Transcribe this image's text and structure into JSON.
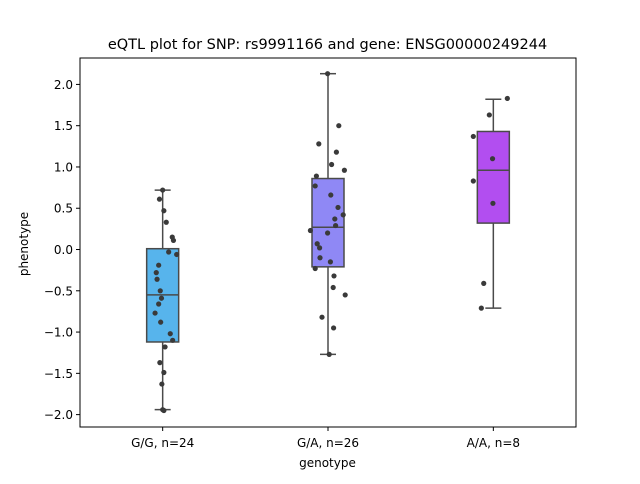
{
  "chart_data": {
    "type": "box",
    "title": "eQTL plot for SNP: rs9991166 and gene: ENSG00000249244",
    "xlabel": "genotype",
    "ylabel": "phenotype",
    "ylim": [
      -2.15,
      2.32
    ],
    "yticks": [
      -2.0,
      -1.5,
      -1.0,
      -0.5,
      0.0,
      0.5,
      1.0,
      1.5,
      2.0
    ],
    "ytick_labels": [
      "−2.0",
      "−1.5",
      "−1.0",
      "−0.5",
      "0.0",
      "0.5",
      "1.0",
      "1.5",
      "2.0"
    ],
    "grid": false,
    "groups": [
      {
        "label": "G/G, n=24",
        "color": "#57b4ec",
        "q1": -1.12,
        "median": -0.55,
        "q3": 0.01,
        "whisker_low": -1.94,
        "whisker_high": 0.72,
        "points": [
          {
            "dx": -0.08,
            "y": 0.61
          },
          {
            "dx": 0.0,
            "y": 0.72
          },
          {
            "dx": 0.03,
            "y": 0.47
          },
          {
            "dx": 0.09,
            "y": 0.33
          },
          {
            "dx": 0.24,
            "y": 0.15
          },
          {
            "dx": 0.27,
            "y": 0.11
          },
          {
            "dx": 0.15,
            "y": -0.03
          },
          {
            "dx": 0.35,
            "y": -0.06
          },
          {
            "dx": -0.1,
            "y": -0.19
          },
          {
            "dx": -0.16,
            "y": -0.28
          },
          {
            "dx": -0.14,
            "y": -0.36
          },
          {
            "dx": -0.06,
            "y": -0.5
          },
          {
            "dx": -0.03,
            "y": -0.59
          },
          {
            "dx": -0.1,
            "y": -0.66
          },
          {
            "dx": -0.19,
            "y": -0.77
          },
          {
            "dx": -0.05,
            "y": -0.88
          },
          {
            "dx": 0.19,
            "y": -1.02
          },
          {
            "dx": 0.25,
            "y": -1.1
          },
          {
            "dx": 0.06,
            "y": -1.18
          },
          {
            "dx": -0.07,
            "y": -1.37
          },
          {
            "dx": 0.03,
            "y": -1.49
          },
          {
            "dx": -0.02,
            "y": -1.63
          },
          {
            "dx": 0.0,
            "y": -1.94
          },
          {
            "dx": 0.03,
            "y": -1.95
          }
        ]
      },
      {
        "label": "G/A, n=26",
        "color": "#8f88f5",
        "q1": -0.21,
        "median": 0.27,
        "q3": 0.86,
        "whisker_low": -1.27,
        "whisker_high": 2.13,
        "points": [
          {
            "dx": -0.01,
            "y": 2.13
          },
          {
            "dx": 0.27,
            "y": 1.5
          },
          {
            "dx": -0.23,
            "y": 1.28
          },
          {
            "dx": 0.21,
            "y": 1.18
          },
          {
            "dx": 0.09,
            "y": 1.03
          },
          {
            "dx": 0.41,
            "y": 0.96
          },
          {
            "dx": -0.29,
            "y": 0.89
          },
          {
            "dx": -0.32,
            "y": 0.77
          },
          {
            "dx": 0.07,
            "y": 0.66
          },
          {
            "dx": 0.25,
            "y": 0.51
          },
          {
            "dx": 0.38,
            "y": 0.42
          },
          {
            "dx": 0.17,
            "y": 0.37
          },
          {
            "dx": 0.19,
            "y": 0.29
          },
          {
            "dx": -0.44,
            "y": 0.23
          },
          {
            "dx": -0.01,
            "y": 0.2
          },
          {
            "dx": -0.27,
            "y": 0.07
          },
          {
            "dx": -0.21,
            "y": 0.02
          },
          {
            "dx": -0.2,
            "y": -0.1
          },
          {
            "dx": 0.06,
            "y": -0.15
          },
          {
            "dx": -0.32,
            "y": -0.23
          },
          {
            "dx": 0.15,
            "y": -0.32
          },
          {
            "dx": 0.13,
            "y": -0.46
          },
          {
            "dx": 0.43,
            "y": -0.55
          },
          {
            "dx": -0.15,
            "y": -0.82
          },
          {
            "dx": 0.14,
            "y": -0.95
          },
          {
            "dx": 0.03,
            "y": -1.27
          }
        ]
      },
      {
        "label": "A/A, n=8",
        "color": "#b24ef0",
        "q1": 0.32,
        "median": 0.96,
        "q3": 1.43,
        "whisker_low": -0.71,
        "whisker_high": 1.82,
        "points": [
          {
            "dx": 0.35,
            "y": 1.83
          },
          {
            "dx": -0.1,
            "y": 1.63
          },
          {
            "dx": -0.5,
            "y": 1.37
          },
          {
            "dx": -0.02,
            "y": 1.1
          },
          {
            "dx": -0.5,
            "y": 0.83
          },
          {
            "dx": -0.01,
            "y": 0.56
          },
          {
            "dx": -0.24,
            "y": -0.41
          },
          {
            "dx": -0.3,
            "y": -0.71
          }
        ]
      }
    ]
  }
}
